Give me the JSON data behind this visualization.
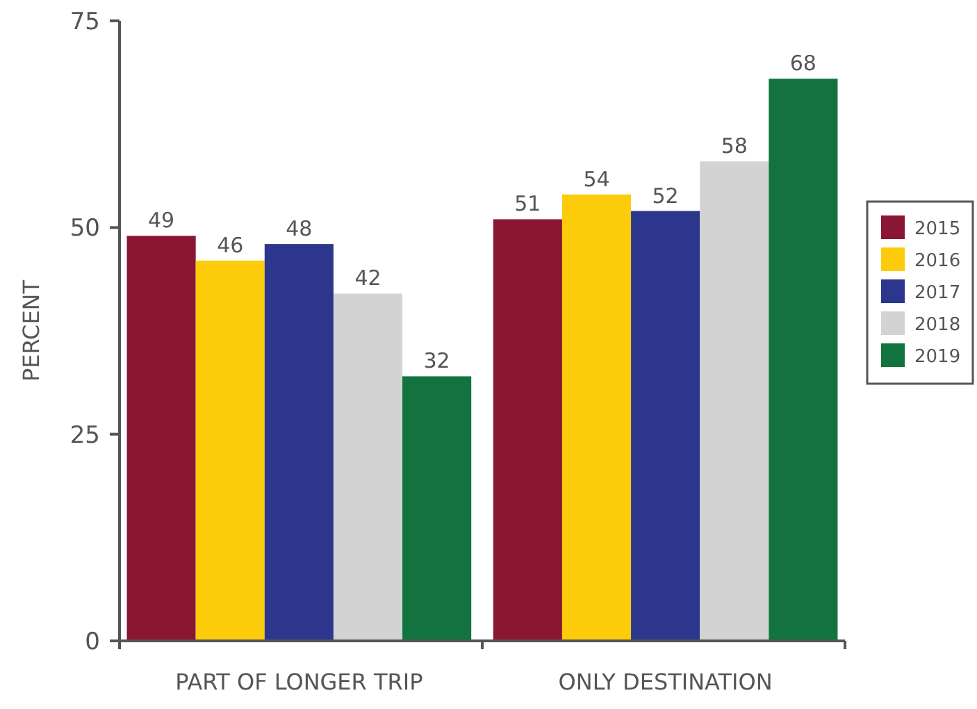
{
  "chart_data": {
    "type": "bar",
    "ylabel": "PERCENT",
    "categories": [
      "PART OF LONGER TRIP",
      "ONLY DESTINATION"
    ],
    "ylim": [
      0,
      75
    ],
    "yticks": [
      0,
      25,
      50,
      75
    ],
    "grid": false,
    "legend": "right",
    "data_labels": true,
    "series": [
      {
        "name": "2015",
        "color": "#8b1634",
        "values": [
          49,
          51
        ]
      },
      {
        "name": "2016",
        "color": "#fccc0a",
        "values": [
          46,
          54
        ]
      },
      {
        "name": "2017",
        "color": "#2c368c",
        "values": [
          48,
          52
        ]
      },
      {
        "name": "2018",
        "color": "#d3d3d3",
        "values": [
          42,
          58
        ]
      },
      {
        "name": "2019",
        "color": "#12733e",
        "values": [
          32,
          68
        ]
      }
    ]
  }
}
